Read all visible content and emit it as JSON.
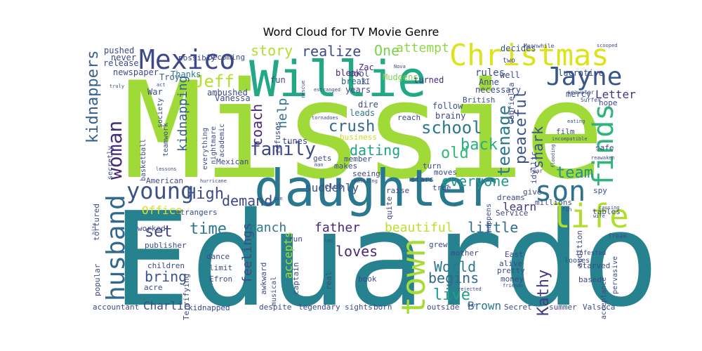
{
  "chart_data": {
    "type": "wordcloud",
    "title": "Word Cloud for TV Movie Genre",
    "colormap": "viridis",
    "background": "#ffffff",
    "words": [
      {
        "text": "Missie",
        "color": "#a0da39"
      },
      {
        "text": "Eduardo",
        "color": "#26828e"
      },
      {
        "text": "daughter",
        "color": "#2a788e"
      },
      {
        "text": "Willie",
        "color": "#22a884"
      },
      {
        "text": "Christmas",
        "color": "#dde318"
      },
      {
        "text": "Mexico",
        "color": "#3e4989"
      },
      {
        "text": "town",
        "color": "#a5db36"
      },
      {
        "text": "husband",
        "color": "#31688e"
      },
      {
        "text": "son",
        "color": "#2c728e"
      },
      {
        "text": "Jayne",
        "color": "#39568c"
      },
      {
        "text": "finds",
        "color": "#2fb47c"
      },
      {
        "text": "life",
        "color": "#b2dd2d"
      },
      {
        "text": "woman",
        "color": "#482878"
      },
      {
        "text": "young",
        "color": "#3b528b"
      },
      {
        "text": "teenage",
        "color": "#2a788e"
      },
      {
        "text": "peaceful",
        "color": "#3b528b"
      },
      {
        "text": "kidnappers",
        "color": "#355f8d"
      },
      {
        "text": "family",
        "color": "#3e4989"
      },
      {
        "text": "school",
        "color": "#2a788e"
      },
      {
        "text": "dating",
        "color": "#1fa188"
      },
      {
        "text": "crush",
        "color": "#31688e"
      },
      {
        "text": "coach",
        "color": "#482878"
      },
      {
        "text": "back",
        "color": "#27ad81"
      },
      {
        "text": "old",
        "color": "#35b779"
      },
      {
        "text": "team",
        "color": "#21918c"
      },
      {
        "text": "shark",
        "color": "#3b528b"
      },
      {
        "text": "kidnapping",
        "color": "#355f8d"
      },
      {
        "text": "Jeff",
        "color": "#b5de2b"
      },
      {
        "text": "story",
        "color": "#b5de2b"
      },
      {
        "text": "realize",
        "color": "#3e4989"
      },
      {
        "text": "One",
        "color": "#7ad151"
      },
      {
        "text": "attempt",
        "color": "#8fd744"
      },
      {
        "text": "High",
        "color": "#3e4989"
      },
      {
        "text": "demand",
        "color": "#3e4989"
      },
      {
        "text": "everyone",
        "color": "#1f9a8a"
      },
      {
        "text": "time",
        "color": "#2a788e"
      },
      {
        "text": "set",
        "color": "#414487"
      },
      {
        "text": "bring",
        "color": "#3b528b"
      },
      {
        "text": "feelings",
        "color": "#3e4989"
      },
      {
        "text": "ranch",
        "color": "#2a788e"
      },
      {
        "text": "father",
        "color": "#482878"
      },
      {
        "text": "beautiful",
        "color": "#bddf26"
      },
      {
        "text": "little",
        "color": "#2e6e8e"
      },
      {
        "text": "loves",
        "color": "#482878"
      },
      {
        "text": "begins",
        "color": "#31688e"
      },
      {
        "text": "World",
        "color": "#2a788e"
      },
      {
        "text": "live",
        "color": "#1f9e89"
      },
      {
        "text": "Kathy",
        "color": "#443983"
      },
      {
        "text": "help",
        "color": "#2c728e"
      },
      {
        "text": "suddenly",
        "color": "#3b528b"
      },
      {
        "text": "learn",
        "color": "#46337f"
      },
      {
        "text": "Charlie",
        "color": "#3e4989"
      },
      {
        "text": "Brown",
        "color": "#2a788e"
      },
      {
        "text": "Office",
        "color": "#d8e219"
      },
      {
        "text": "accepts",
        "color": "#a5db36"
      },
      {
        "text": "Letter",
        "color": "#46337f"
      },
      {
        "text": "rules",
        "color": "#3b528b"
      },
      {
        "text": "Anne",
        "color": "#3e4989"
      },
      {
        "text": "necessary",
        "color": "#3e4989"
      },
      {
        "text": "mercy",
        "color": "#3b528b"
      },
      {
        "text": "follow",
        "color": "#3b528b"
      },
      {
        "text": "brainy",
        "color": "#414487"
      },
      {
        "text": "dire",
        "color": "#3e4989"
      },
      {
        "text": "leads",
        "color": "#2a788e"
      },
      {
        "text": "turned",
        "color": "#482878"
      },
      {
        "text": "bleak",
        "color": "#482878"
      },
      {
        "text": "break",
        "color": "#31688e"
      },
      {
        "text": "Zac",
        "color": "#482878"
      },
      {
        "text": "cool",
        "color": "#3e4989"
      },
      {
        "text": "years",
        "color": "#3e4989"
      },
      {
        "text": "Mudgens",
        "color": "#7ad151"
      },
      {
        "text": "decides",
        "color": "#3b528b"
      },
      {
        "text": "lucrative",
        "color": "#3e4989"
      },
      {
        "text": "Vanessa",
        "color": "#3e4989"
      },
      {
        "text": "ambushed",
        "color": "#3e4989"
      },
      {
        "text": "Troy",
        "color": "#355f8d"
      },
      {
        "text": "Thanks",
        "color": "#2a788e"
      },
      {
        "text": "War",
        "color": "#3e4989"
      },
      {
        "text": "newspaper",
        "color": "#3e4989"
      },
      {
        "text": "release",
        "color": "#3e4989"
      },
      {
        "text": "pushed",
        "color": "#3e4989"
      },
      {
        "text": "never",
        "color": "#3e4989"
      },
      {
        "text": "possibly",
        "color": "#3e4989"
      },
      {
        "text": "becoming",
        "color": "#3e4989"
      },
      {
        "text": "fun",
        "color": "#3e4989"
      },
      {
        "text": "refuses",
        "color": "#3e4989"
      },
      {
        "text": "tunes",
        "color": "#3e4989"
      },
      {
        "text": "business",
        "color": "#c8e020"
      },
      {
        "text": "member",
        "color": "#3e4989"
      },
      {
        "text": "reach",
        "color": "#3e4989"
      },
      {
        "text": "British",
        "color": "#3e4989"
      },
      {
        "text": "hope",
        "color": "#3e4989"
      },
      {
        "text": "film",
        "color": "#3e4989"
      },
      {
        "text": "safe",
        "color": "#3e4989"
      },
      {
        "text": "idyllic",
        "color": "#3e4989"
      },
      {
        "text": "gets",
        "color": "#3e4989"
      },
      {
        "text": "makes",
        "color": "#3e4989"
      },
      {
        "text": "seeing",
        "color": "#3e4989"
      },
      {
        "text": "club",
        "color": "#3e4989"
      },
      {
        "text": "raise",
        "color": "#3e4989"
      },
      {
        "text": "turn",
        "color": "#3e4989"
      },
      {
        "text": "moves",
        "color": "#3e4989"
      },
      {
        "text": "stars",
        "color": "#3e4989"
      },
      {
        "text": "true",
        "color": "#3e4989"
      },
      {
        "text": "dreams",
        "color": "#3e4989"
      },
      {
        "text": "millions",
        "color": "#3e4989"
      },
      {
        "text": "give",
        "color": "#3e4989"
      },
      {
        "text": "spy",
        "color": "#3e4989"
      },
      {
        "text": "tables",
        "color": "#3e4989"
      },
      {
        "text": "audition",
        "color": "#3e4989"
      },
      {
        "text": "Service",
        "color": "#3e4989"
      },
      {
        "text": "happens",
        "color": "#3e4989"
      },
      {
        "text": "quite",
        "color": "#3e4989"
      },
      {
        "text": "Mexican",
        "color": "#3e4989"
      },
      {
        "text": "academic",
        "color": "#3e4989"
      },
      {
        "text": "nightmare",
        "color": "#3e4989"
      },
      {
        "text": "everything",
        "color": "#3e4989"
      },
      {
        "text": "teamwork",
        "color": "#3e4989"
      },
      {
        "text": "society",
        "color": "#3e4989"
      },
      {
        "text": "basketball",
        "color": "#3e4989"
      },
      {
        "text": "secretly",
        "color": "#3e4989"
      },
      {
        "text": "American",
        "color": "#3e4989"
      },
      {
        "text": "strangers",
        "color": "#3e4989"
      },
      {
        "text": "worked",
        "color": "#3e4989"
      },
      {
        "text": "publisher",
        "color": "#3e4989"
      },
      {
        "text": "tortured",
        "color": "#3e4989"
      },
      {
        "text": "children",
        "color": "#3e4989"
      },
      {
        "text": "dance",
        "color": "#3e4989"
      },
      {
        "text": "limit",
        "color": "#3e4989"
      },
      {
        "text": "Efron",
        "color": "#3e4989"
      },
      {
        "text": "acre",
        "color": "#3e4989"
      },
      {
        "text": "Terrifying",
        "color": "#3e4989"
      },
      {
        "text": "popular",
        "color": "#3e4989"
      },
      {
        "text": "accountant",
        "color": "#3e4989"
      },
      {
        "text": "kidnapped",
        "color": "#3e4989"
      },
      {
        "text": "despite",
        "color": "#3e4989"
      },
      {
        "text": "legendary",
        "color": "#3e4989"
      },
      {
        "text": "sights",
        "color": "#3e4989"
      },
      {
        "text": "born",
        "color": "#3e4989"
      },
      {
        "text": "outside",
        "color": "#3e4989"
      },
      {
        "text": "Secret",
        "color": "#3e4989"
      },
      {
        "text": "summer",
        "color": "#3e4989"
      },
      {
        "text": "Valseca",
        "color": "#3e4989"
      },
      {
        "text": "awkward",
        "color": "#3e4989"
      },
      {
        "text": "musical",
        "color": "#3e4989"
      },
      {
        "text": "captain",
        "color": "#3e4989"
      },
      {
        "text": "run",
        "color": "#3e4989"
      },
      {
        "text": "real",
        "color": "#3e4989"
      },
      {
        "text": "book",
        "color": "#3e4989"
      },
      {
        "text": "grew",
        "color": "#3e4989"
      },
      {
        "text": "mother",
        "color": "#3e4989"
      },
      {
        "text": "East",
        "color": "#3e4989"
      },
      {
        "text": "alive",
        "color": "#3e4989"
      },
      {
        "text": "pretty",
        "color": "#3e4989"
      },
      {
        "text": "money",
        "color": "#3e4989"
      },
      {
        "text": "starved",
        "color": "#3e4989"
      },
      {
        "text": "based",
        "color": "#3e4989"
      },
      {
        "text": "looses",
        "color": "#3e4989"
      },
      {
        "text": "infested",
        "color": "#3e4989"
      },
      {
        "text": "pervasive",
        "color": "#3e4989"
      },
      {
        "text": "acceptance",
        "color": "#3e4989"
      },
      {
        "text": "freak",
        "color": "#3e4989"
      },
      {
        "text": "Gabriella",
        "color": "#3e4989"
      },
      {
        "text": "Meanwhile",
        "color": "#3e4989"
      },
      {
        "text": "seawater",
        "color": "#3e4989"
      },
      {
        "text": "Surfer",
        "color": "#3e4989"
      },
      {
        "text": "two",
        "color": "#3e4989"
      },
      {
        "text": "well",
        "color": "#3e4989"
      },
      {
        "text": "II",
        "color": "#3e4989"
      },
      {
        "text": "Nova",
        "color": "#3e4989"
      },
      {
        "text": "estranged",
        "color": "#3e4989"
      },
      {
        "text": "rescue",
        "color": "#3e4989"
      },
      {
        "text": "truly",
        "color": "#3e4989"
      },
      {
        "text": "act",
        "color": "#3e4989"
      },
      {
        "text": "tornadoes",
        "color": "#3e4989"
      },
      {
        "text": "eating",
        "color": "#3e4989"
      },
      {
        "text": "incompatible",
        "color": "#3e4989"
      },
      {
        "text": "flooding",
        "color": "#3e4989"
      },
      {
        "text": "reawaken",
        "color": "#3e4989"
      },
      {
        "text": "fear",
        "color": "#3e4989"
      },
      {
        "text": "hurricane",
        "color": "#3e4989"
      },
      {
        "text": "lessons",
        "color": "#3e4989"
      },
      {
        "text": "realizing",
        "color": "#3e4989"
      },
      {
        "text": "causing",
        "color": "#3e4989"
      },
      {
        "text": "friends",
        "color": "#3e4989"
      },
      {
        "text": "rejected",
        "color": "#3e4989"
      },
      {
        "text": "wife",
        "color": "#3e4989"
      },
      {
        "text": "hits",
        "color": "#3e4989"
      },
      {
        "text": "scooped",
        "color": "#3e4989"
      },
      {
        "text": "fin",
        "color": "#3e4989"
      },
      {
        "text": "los",
        "color": "#3e4989"
      },
      {
        "text": "bar",
        "color": "#3e4989"
      },
      {
        "text": "man",
        "color": "#3e4989"
      },
      {
        "text": "gun",
        "color": "#3e4989"
      }
    ]
  }
}
